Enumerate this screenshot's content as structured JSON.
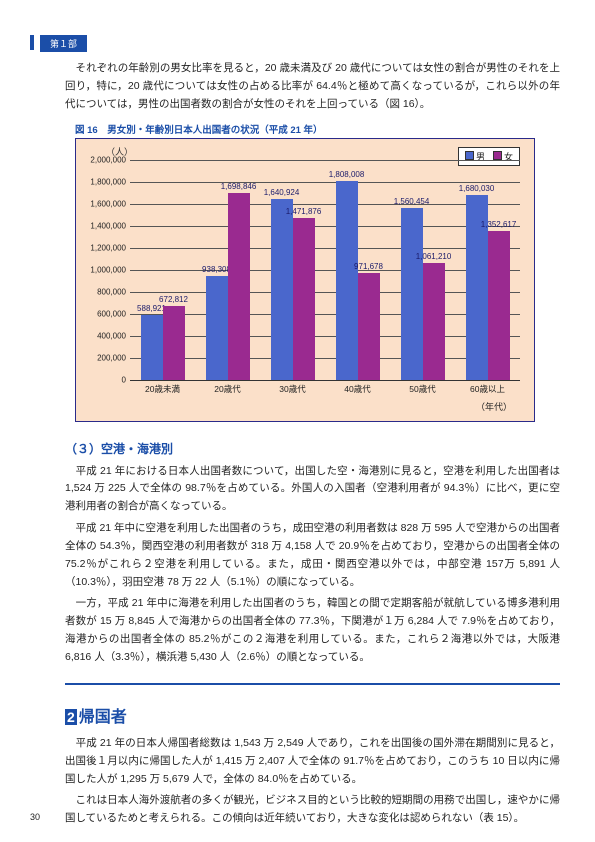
{
  "header": {
    "tab": "第１部"
  },
  "intro_para": "　それぞれの年齢別の男女比率を見ると，20 歳未満及び 20 歳代については女性の割合が男性のそれを上回り，特に，20 歳代については女性の占める比率が 64.4％と極めて高くなっているが，これら以外の年代については，男性の出国者数の割合が女性のそれを上回っている（図 16）。",
  "chart": {
    "title": "図 16　男女別・年齢別日本人出国者の状況（平成 21 年）",
    "y_unit": "（人）",
    "x_unit": "（年代）",
    "legend": {
      "male": "男",
      "female": "女"
    },
    "ymax": 2000000,
    "ytick_step": 200000,
    "categories": [
      "20歳未満",
      "20歳代",
      "30歳代",
      "40歳代",
      "50歳代",
      "60歳以上"
    ],
    "male": [
      588921,
      938308,
      1640924,
      1808008,
      1560454,
      1680030
    ],
    "female": [
      672812,
      1698846,
      1471876,
      971678,
      1061210,
      1352617
    ],
    "male_color": "#4a67cc",
    "female_color": "#9a2a90",
    "bg": "#fbe0c9"
  },
  "section3": {
    "title": "（３）空港・海港別",
    "p1": "　平成 21 年における日本人出国者数について，出国した空・海港別に見ると，空港を利用した出国者は 1,524 万 225 人で全体の 98.7％を占めている。外国人の入国者（空港利用者が 94.3％）に比べ，更に空港利用者の割合が高くなっている。",
    "p2": "　平成 21 年中に空港を利用した出国者のうち，成田空港の利用者数は 828 万 595 人で空港からの出国者全体の 54.3％，関西空港の利用者数が 318 万 4,158 人で 20.9％を占めており，空港からの出国者全体の 75.2％がこれら２空港を利用している。また，成田・関西空港以外では，中部空港 157万 5,891 人（10.3％），羽田空港 78 万 22 人（5.1％）の順になっている。",
    "p3": "　一方，平成 21 年中に海港を利用した出国者のうち，韓国との間で定期客船が就航している博多港利用者数が 15 万 8,845 人で海港からの出国者全体の 77.3％，下関港が１万 6,284 人で 7.9％を占めており，海港からの出国者全体の 85.2％がこの２海港を利用している。また，これら２海港以外では，大阪港 6,816 人（3.3％），横浜港 5,430 人（2.6％）の順となっている。"
  },
  "section_return": {
    "num": "2",
    "title": "帰国者",
    "p1": "　平成 21 年の日本人帰国者総数は 1,543 万 2,549 人であり，これを出国後の国外滞在期間別に見ると，出国後１月以内に帰国した人が 1,415 万 2,407 人で全体の 91.7％を占めており，このうち 10 日以内に帰国した人が 1,295 万 5,679 人で，全体の 84.0％を占めている。",
    "p2": "　これは日本人海外渡航者の多くが観光，ビジネス目的という比較的短期間の用務で出国し，速やかに帰国しているためと考えられる。この傾向は近年続いており，大きな変化は認められない（表 15）。"
  },
  "page_num": "30"
}
